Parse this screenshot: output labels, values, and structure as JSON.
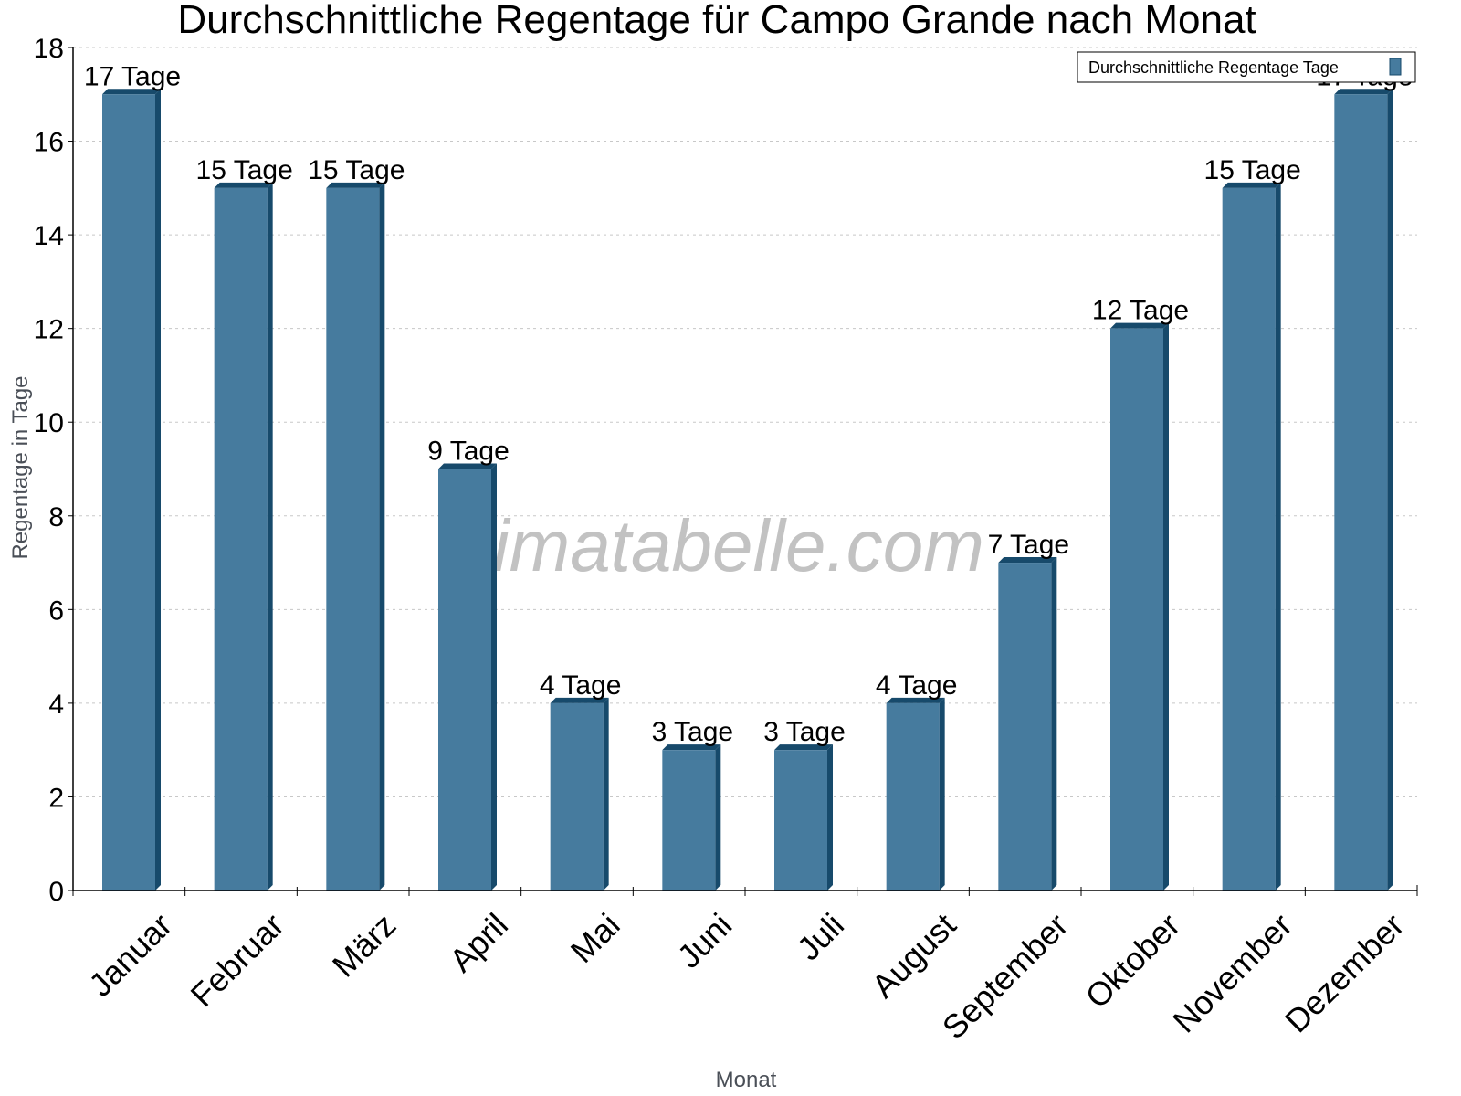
{
  "chart_data": {
    "type": "bar",
    "title": "Durchschnittliche Regentage für Campo Grande nach Monat",
    "xlabel": "Monat",
    "ylabel": "Regentage in Tage",
    "categories": [
      "Januar",
      "Februar",
      "März",
      "April",
      "Mai",
      "Juni",
      "Juli",
      "August",
      "September",
      "Oktober",
      "November",
      "Dezember"
    ],
    "series": [
      {
        "name": "Durchschnittliche Regentage Tage",
        "values": [
          17,
          15,
          15,
          9,
          4,
          3,
          3,
          4,
          7,
          12,
          15,
          17
        ],
        "color": "#467b9e",
        "depth_color": "#174a6b"
      }
    ],
    "value_suffix": " Tage",
    "ylim": [
      0,
      18
    ],
    "yticks": [
      0,
      2,
      4,
      6,
      8,
      10,
      12,
      14,
      16,
      18
    ],
    "grid": true,
    "legend_position": "top-right",
    "watermark": "klimatabelle.com"
  }
}
